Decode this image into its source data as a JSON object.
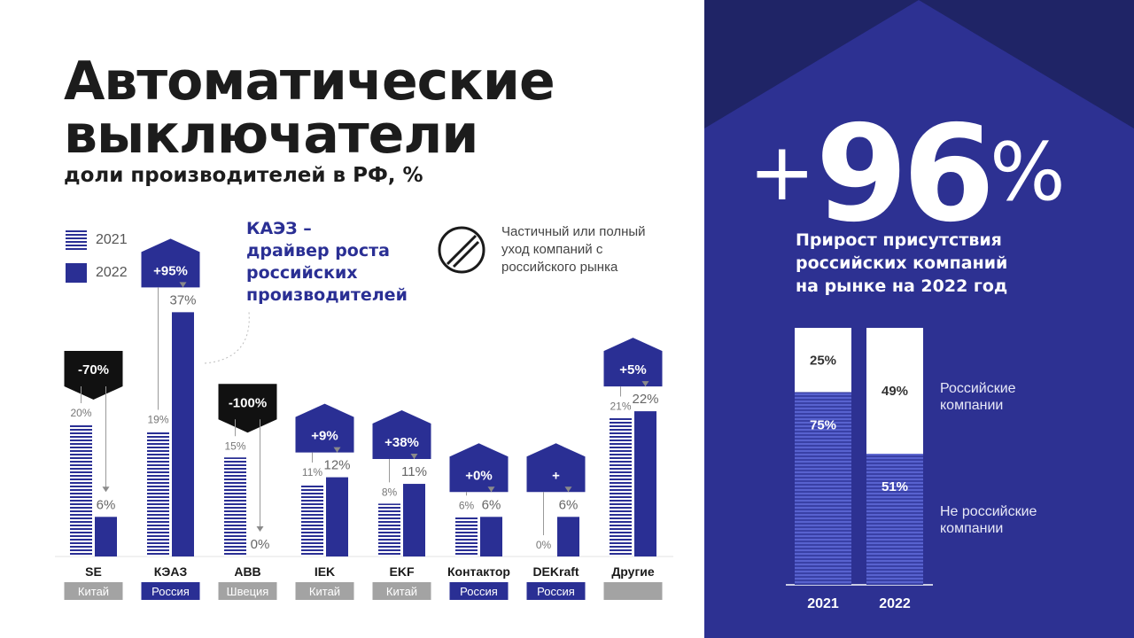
{
  "header": {
    "title_line1": "Автоматические",
    "title_line2": "выключатели",
    "subtitle": "доли производителей в РФ, %"
  },
  "legend": {
    "y2021": "2021",
    "y2022": "2022"
  },
  "callout": {
    "text": "КАЭЗ –\nдрайвер роста\nроссийских\nпроизводителей"
  },
  "exit_note": {
    "icon": "no-entry-icon",
    "text": "Частичный или полный\nуход компаний с\nроссийского рынка"
  },
  "colors": {
    "accent": "#2a2f94",
    "panel": "#2d3192",
    "roof": "#1f2466",
    "exit_badge": "#111111",
    "country_russia": "#2a2f94",
    "country_other": "#a3a3a3"
  },
  "chart_data": [
    {
      "type": "bar",
      "title": "",
      "series": [
        {
          "name": "2021",
          "values": [
            20,
            19,
            15,
            11,
            8,
            6,
            0,
            21
          ]
        },
        {
          "name": "2022",
          "values": [
            6,
            37,
            0,
            12,
            11,
            6,
            6,
            22
          ]
        }
      ],
      "categories": [
        "SE",
        "КЭАЗ",
        "ABB",
        "IEK",
        "EKF",
        "Контактор",
        "DEKraft",
        "Другие"
      ],
      "labels_2021": [
        "20%",
        "19%",
        "15%",
        "11%",
        "8%",
        "6%",
        "0%",
        "21%"
      ],
      "labels_2022": [
        "6%",
        "37%",
        "0%",
        "12%",
        "11%",
        "6%",
        "6%",
        "22%"
      ],
      "changes": [
        "-70%",
        "+95%",
        "-100%",
        "+9%",
        "+38%",
        "+0%",
        "+",
        "+5%"
      ],
      "change_exit": [
        true,
        false,
        true,
        false,
        false,
        false,
        false,
        false
      ],
      "countries": [
        "Китай",
        "Россия",
        "Швеция",
        "Китай",
        "Китай",
        "Россия",
        "Россия",
        ""
      ],
      "ylim": [
        0,
        37
      ]
    },
    {
      "type": "bar",
      "stacked": true,
      "categories": [
        "2021",
        "2022"
      ],
      "series": [
        {
          "name": "Не российские компании",
          "values": [
            75,
            51
          ],
          "labels": [
            "75%",
            "51%"
          ]
        },
        {
          "name": "Российские компании",
          "values": [
            25,
            49
          ],
          "labels": [
            "25%",
            "49%"
          ]
        }
      ],
      "ylim": [
        0,
        100
      ]
    }
  ],
  "summary": {
    "sign": "+",
    "value": "96",
    "unit": "%",
    "description": "Прирост присутствия\nроссийских компаний\nна рынке на 2022 год",
    "legend_russian": "Российские\nкомпании",
    "legend_foreign": "Не российские\nкомпании"
  }
}
